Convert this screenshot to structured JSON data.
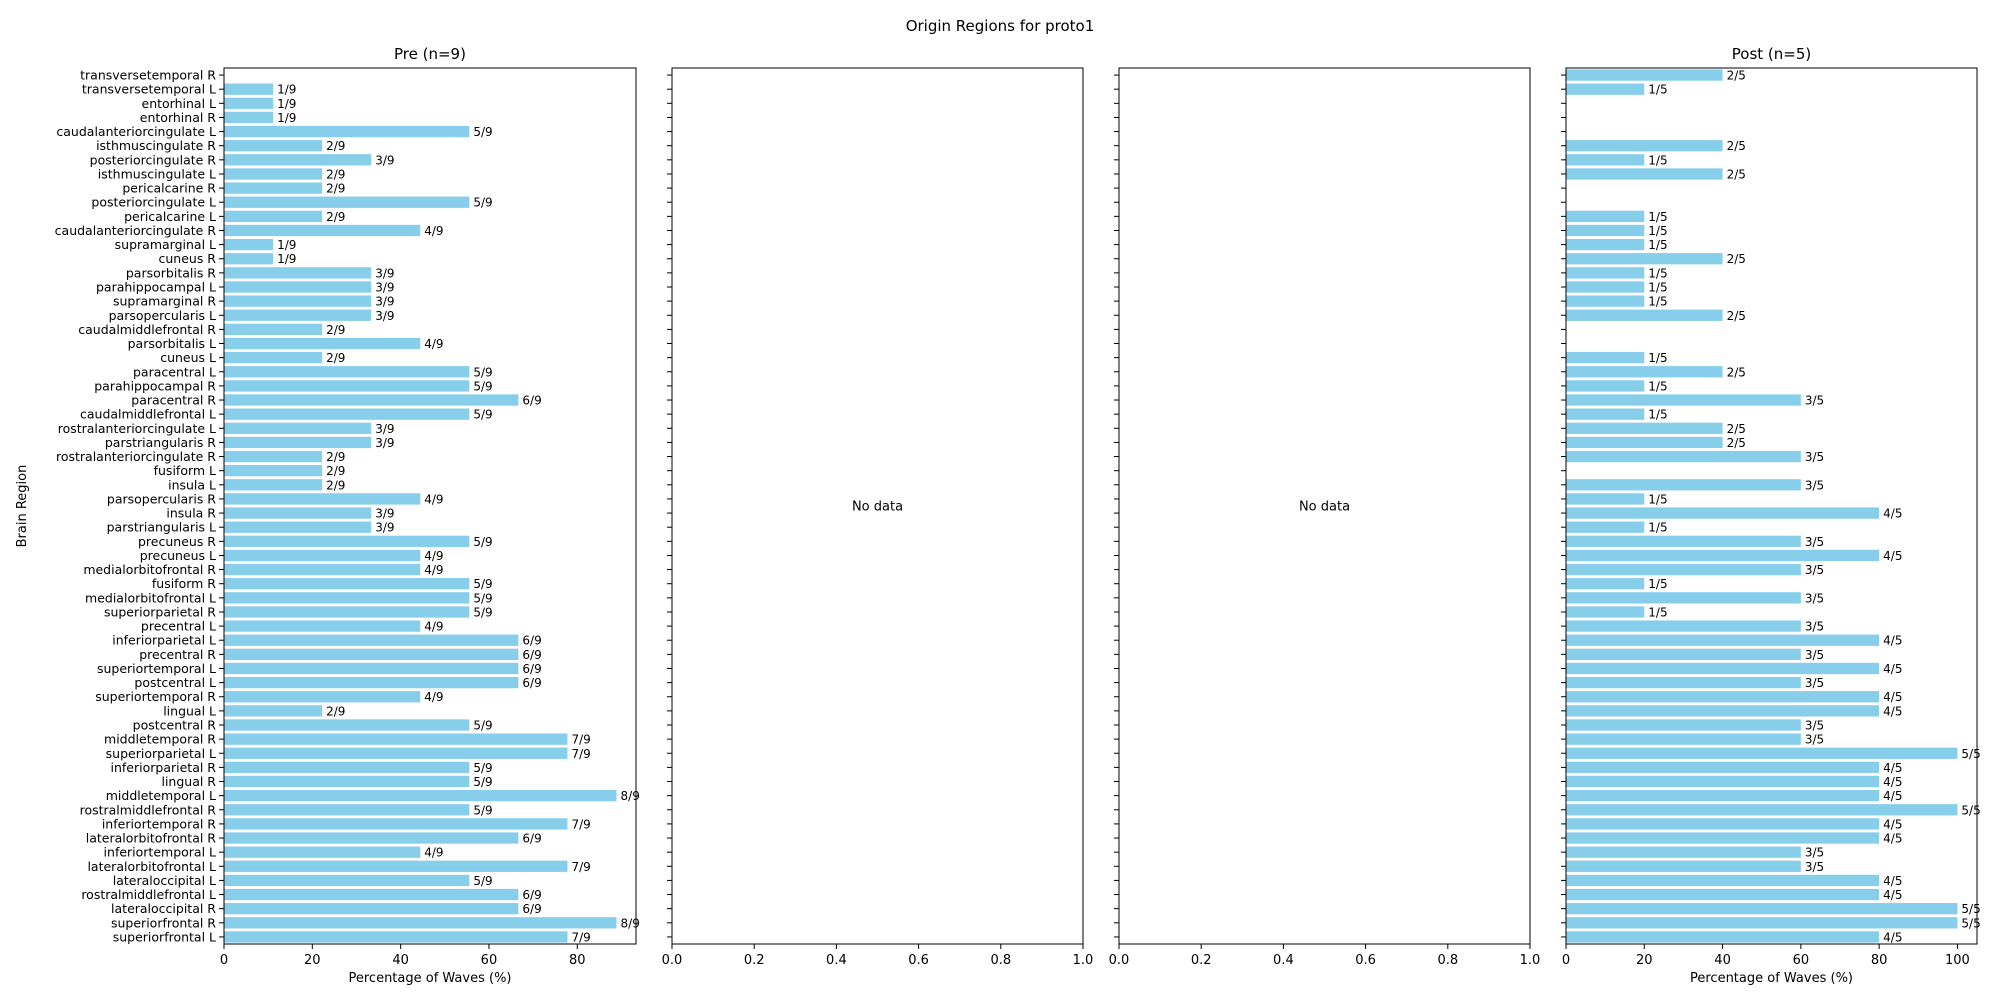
{
  "chart_data": {
    "type": "bar",
    "orientation": "horizontal",
    "title": "Origin Regions for proto1",
    "ylabel": "Brain Region",
    "bar_color": "#87CEEB",
    "no_data_text": "No data",
    "categories": [
      "superiorfrontal L",
      "superiorfrontal R",
      "lateraloccipital R",
      "rostralmiddlefrontal L",
      "lateraloccipital L",
      "lateralorbitofrontal L",
      "inferiortemporal L",
      "lateralorbitofrontal R",
      "inferiortemporal R",
      "rostralmiddlefrontal R",
      "middletemporal L",
      "lingual R",
      "inferiorparietal R",
      "superiorparietal L",
      "middletemporal R",
      "postcentral R",
      "lingual L",
      "superiortemporal R",
      "postcentral L",
      "superiortemporal L",
      "precentral R",
      "inferiorparietal L",
      "precentral L",
      "superiorparietal R",
      "medialorbitofrontal L",
      "fusiform R",
      "medialorbitofrontal R",
      "precuneus L",
      "precuneus R",
      "parstriangularis L",
      "insula R",
      "parsopercularis R",
      "insula L",
      "fusiform L",
      "rostralanteriorcingulate R",
      "parstriangularis R",
      "rostralanteriorcingulate L",
      "caudalmiddlefrontal L",
      "paracentral R",
      "parahippocampal R",
      "paracentral L",
      "cuneus L",
      "parsorbitalis L",
      "caudalmiddlefrontal R",
      "parsopercularis L",
      "supramarginal R",
      "parahippocampal L",
      "parsorbitalis R",
      "cuneus R",
      "supramarginal L",
      "caudalanteriorcingulate R",
      "pericalcarine L",
      "posteriorcingulate L",
      "pericalcarine R",
      "isthmuscingulate L",
      "posteriorcingulate R",
      "isthmuscingulate R",
      "caudalanteriorcingulate L",
      "entorhinal R",
      "entorhinal L",
      "transversetemporal L",
      "transversetemporal R"
    ],
    "panels": [
      {
        "title": "Pre (n=9)",
        "n": 9,
        "xlabel": "Percentage of Waves (%)",
        "xlim": [
          0,
          93.3
        ],
        "xticks": [
          0,
          20,
          40,
          60,
          80
        ],
        "counts": [
          7,
          8,
          6,
          6,
          5,
          7,
          4,
          6,
          7,
          5,
          8,
          5,
          5,
          7,
          7,
          5,
          2,
          4,
          6,
          6,
          6,
          6,
          4,
          5,
          5,
          5,
          4,
          4,
          5,
          3,
          3,
          4,
          2,
          2,
          2,
          3,
          3,
          5,
          6,
          5,
          5,
          2,
          4,
          2,
          3,
          3,
          3,
          3,
          1,
          1,
          4,
          2,
          5,
          2,
          2,
          3,
          2,
          5,
          1,
          1,
          1,
          0
        ],
        "labels": [
          "7/9",
          "8/9",
          "6/9",
          "6/9",
          "5/9",
          "7/9",
          "4/9",
          "6/9",
          "7/9",
          "5/9",
          "8/9",
          "5/9",
          "5/9",
          "7/9",
          "7/9",
          "5/9",
          "2/9",
          "4/9",
          "6/9",
          "6/9",
          "6/9",
          "6/9",
          "4/9",
          "5/9",
          "5/9",
          "5/9",
          "4/9",
          "4/9",
          "5/9",
          "3/9",
          "3/9",
          "4/9",
          "2/9",
          "2/9",
          "2/9",
          "3/9",
          "3/9",
          "5/9",
          "6/9",
          "5/9",
          "5/9",
          "2/9",
          "4/9",
          "2/9",
          "3/9",
          "3/9",
          "3/9",
          "3/9",
          "1/9",
          "1/9",
          "4/9",
          "2/9",
          "5/9",
          "2/9",
          "2/9",
          "3/9",
          "2/9",
          "5/9",
          "1/9",
          "1/9",
          "1/9",
          ""
        ],
        "has_data": true
      },
      {
        "title": "",
        "xlabel": "",
        "xlim": [
          0,
          1
        ],
        "xticks": [
          "0.0",
          "0.2",
          "0.4",
          "0.6",
          "0.8",
          "1.0"
        ],
        "has_data": false
      },
      {
        "title": "",
        "xlabel": "",
        "xlim": [
          0,
          1
        ],
        "xticks": [
          "0.0",
          "0.2",
          "0.4",
          "0.6",
          "0.8",
          "1.0"
        ],
        "has_data": false
      },
      {
        "title": "Post (n=5)",
        "n": 5,
        "xlabel": "Percentage of Waves (%)",
        "xlim": [
          0,
          105
        ],
        "xticks": [
          0,
          20,
          40,
          60,
          80,
          100
        ],
        "counts": [
          4,
          5,
          5,
          4,
          4,
          3,
          3,
          4,
          4,
          5,
          4,
          4,
          4,
          5,
          3,
          3,
          4,
          4,
          3,
          4,
          3,
          4,
          3,
          1,
          3,
          1,
          3,
          4,
          3,
          1,
          4,
          1,
          3,
          0,
          3,
          2,
          2,
          1,
          3,
          1,
          2,
          1,
          0,
          0,
          2,
          1,
          1,
          1,
          2,
          1,
          1,
          1,
          0,
          0,
          2,
          1,
          2,
          0,
          0,
          0,
          1,
          2
        ],
        "labels": [
          "4/5",
          "5/5",
          "5/5",
          "4/5",
          "4/5",
          "3/5",
          "3/5",
          "4/5",
          "4/5",
          "5/5",
          "4/5",
          "4/5",
          "4/5",
          "5/5",
          "3/5",
          "3/5",
          "4/5",
          "4/5",
          "3/5",
          "4/5",
          "3/5",
          "4/5",
          "3/5",
          "1/5",
          "3/5",
          "1/5",
          "3/5",
          "4/5",
          "3/5",
          "1/5",
          "4/5",
          "1/5",
          "3/5",
          "",
          "3/5",
          "2/5",
          "2/5",
          "1/5",
          "3/5",
          "1/5",
          "2/5",
          "1/5",
          "",
          "",
          "2/5",
          "1/5",
          "1/5",
          "1/5",
          "2/5",
          "1/5",
          "1/5",
          "1/5",
          "",
          "",
          "2/5",
          "1/5",
          "2/5",
          "",
          "",
          "",
          "1/5",
          "2/5"
        ],
        "has_data": true
      }
    ]
  }
}
